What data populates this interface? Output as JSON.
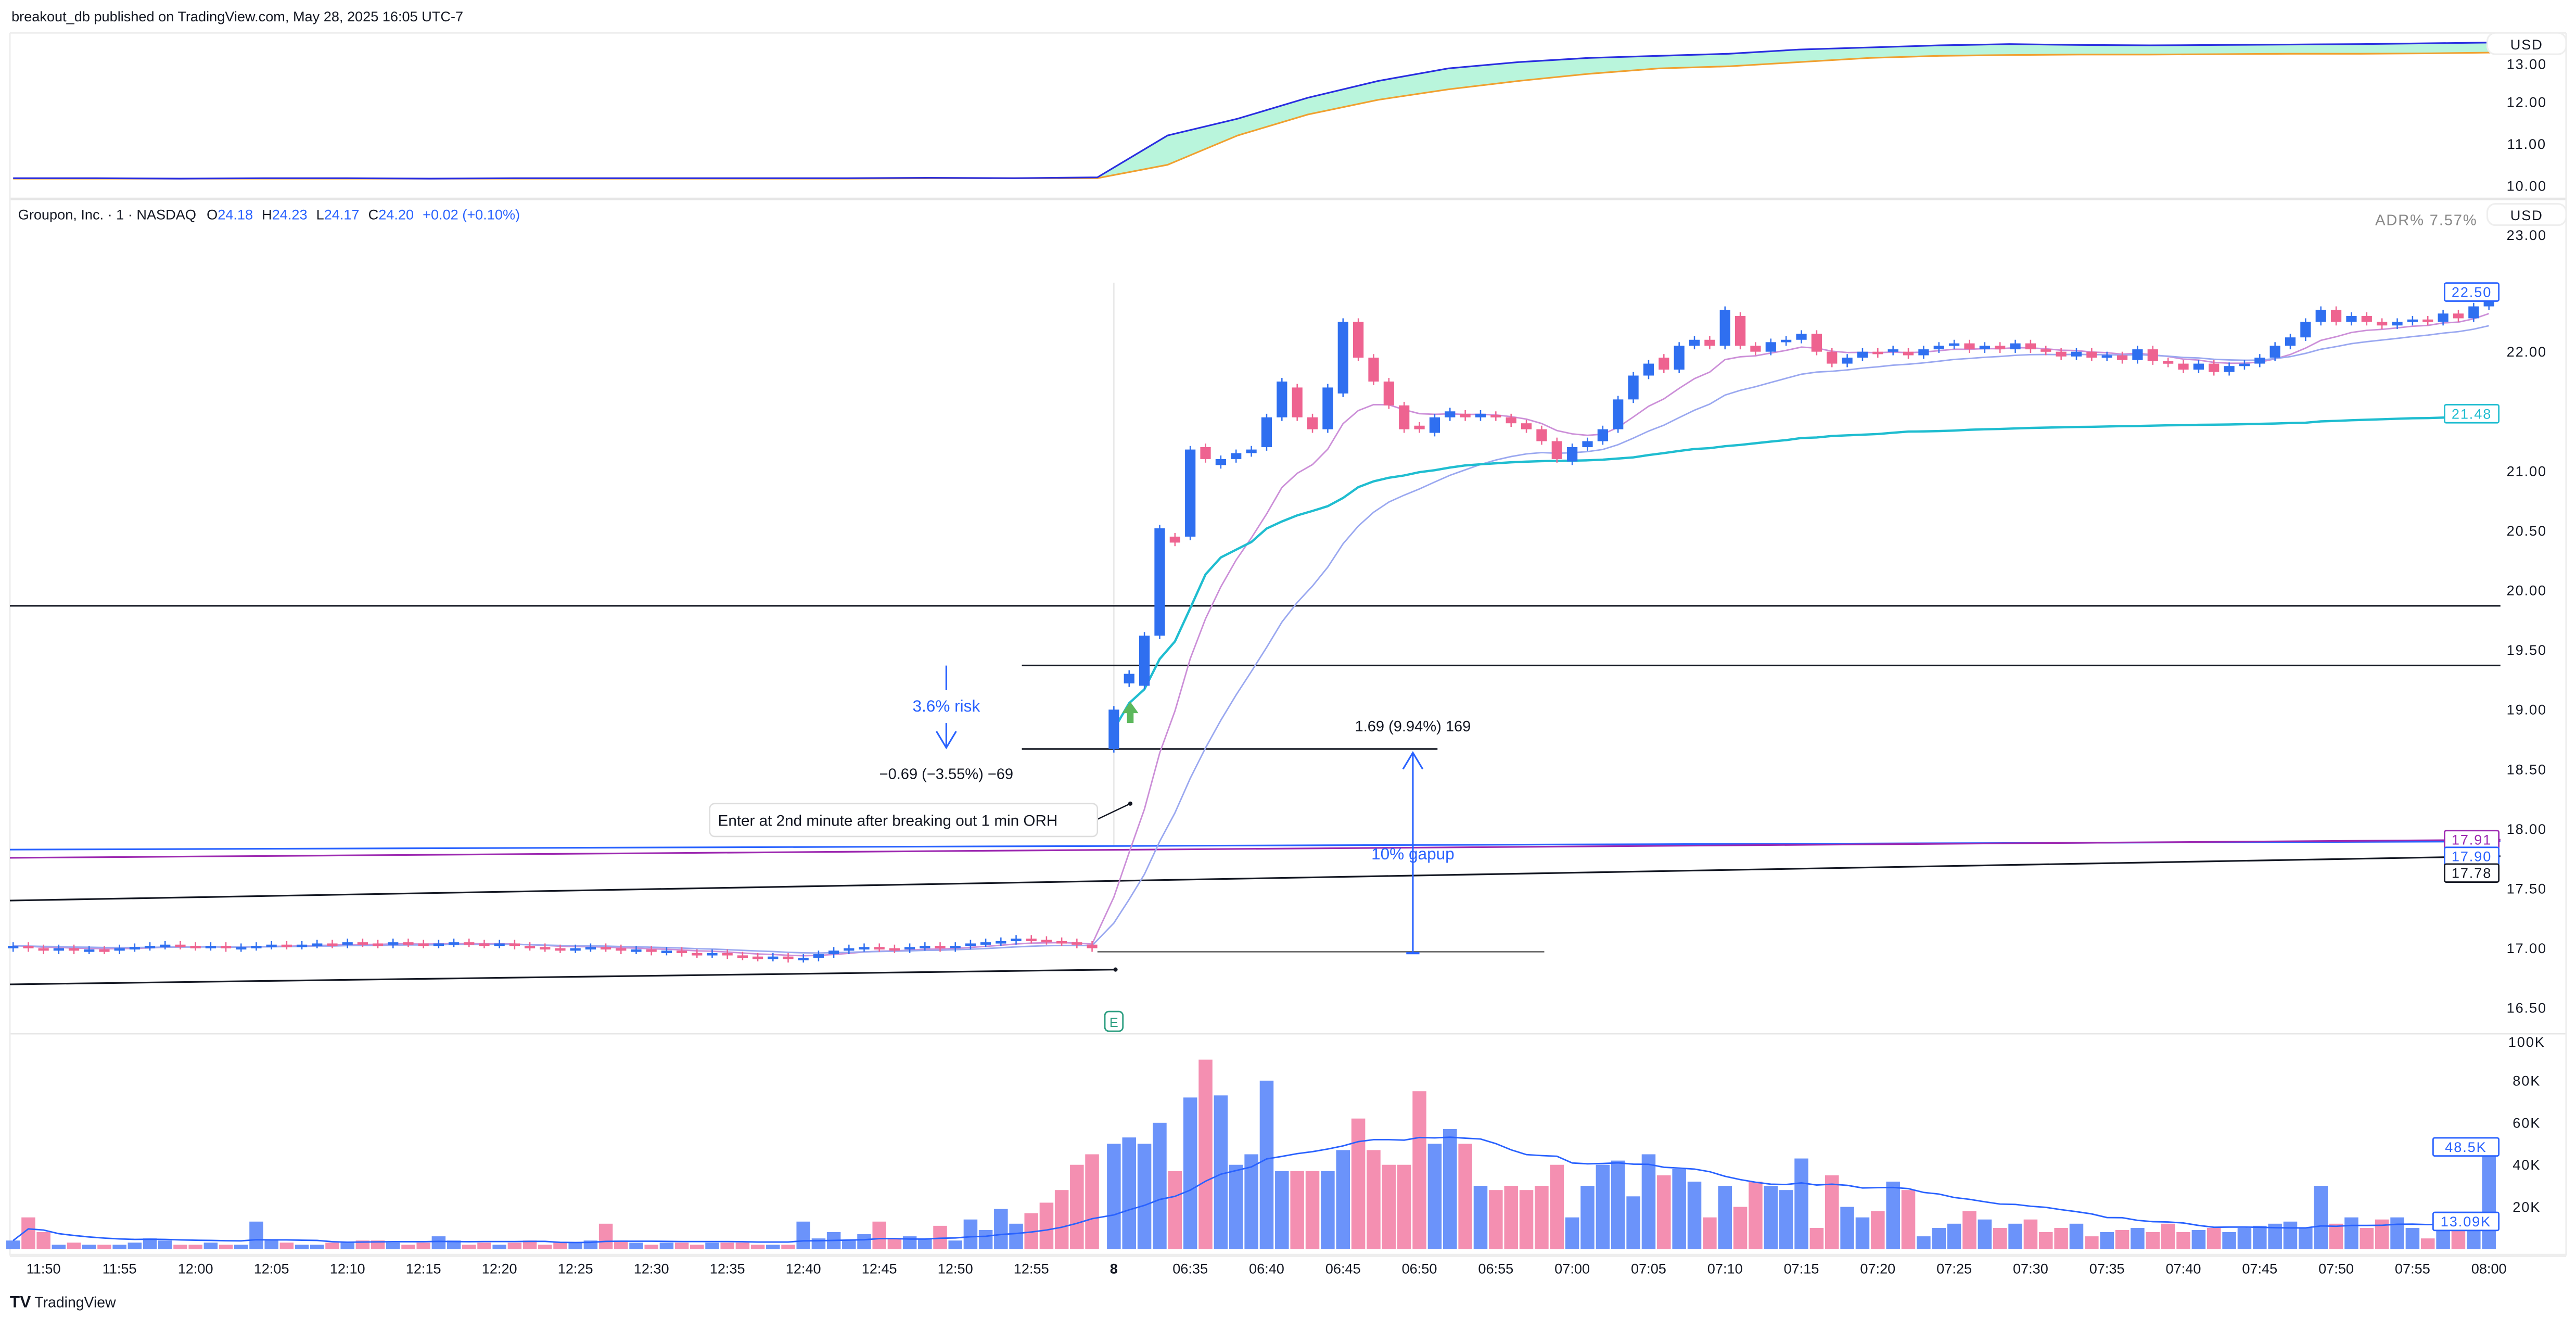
{
  "publish_line": "breakout_db published on TradingView.com, May 28, 2025 16:05 UTC-7",
  "footer_logo": "TradingView",
  "colors": {
    "up": "#2f6ff0",
    "down": "#ee6390",
    "vol_up": "#6b93fa",
    "vol_down": "#f48fb1",
    "vwap": "#1fbdd0",
    "ema_fast": "#cc8fd8",
    "ema_slow": "#9aa8f0",
    "fill": "#b9f5dc",
    "upper_line": "#2a2ee0",
    "lower_line": "#f0a030",
    "gain_arrow": "#5cb85c",
    "annotation_blue": "#2962ff"
  },
  "top_pane": {
    "currency": "USD",
    "ticks": [
      "13.00",
      "12.00",
      "11.00",
      "10.00"
    ],
    "upper_series": [
      10.18,
      10.18,
      10.17,
      10.18,
      10.18,
      10.17,
      10.18,
      10.18,
      10.18,
      10.18,
      10.18,
      10.19,
      10.18,
      10.2,
      11.2,
      11.6,
      12.1,
      12.5,
      12.8,
      12.95,
      13.05,
      13.1,
      13.15,
      13.25,
      13.3,
      13.35,
      13.38,
      13.36,
      13.35,
      13.36,
      13.37,
      13.38,
      13.4,
      13.42
    ],
    "lower_series": [
      10.17,
      10.17,
      10.17,
      10.17,
      10.17,
      10.17,
      10.17,
      10.17,
      10.17,
      10.17,
      10.17,
      10.18,
      10.18,
      10.18,
      10.5,
      11.2,
      11.7,
      12.05,
      12.3,
      12.5,
      12.67,
      12.8,
      12.85,
      12.95,
      13.05,
      13.1,
      13.12,
      13.13,
      13.13,
      13.14,
      13.15,
      13.15,
      13.16,
      13.18
    ]
  },
  "header": {
    "symbol": "Groupon, Inc. · 1 · NASDAQ",
    "o_label": "O",
    "o": "24.18",
    "h_label": "H",
    "h": "24.23",
    "l_label": "L",
    "l": "24.17",
    "c_label": "C",
    "c": "24.20",
    "change": "+0.02 (+0.10%)",
    "adr": "ADR%  7.57%",
    "currency": "USD"
  },
  "chart_data": {
    "type": "candlestick",
    "price_ticks": [
      "23.00",
      "22.00",
      "21.00",
      "20.50",
      "20.00",
      "19.50",
      "19.00",
      "18.50",
      "18.00",
      "17.50",
      "17.00",
      "16.50"
    ],
    "volume_ticks": [
      "100K",
      "80K",
      "60K",
      "40K",
      "20K"
    ],
    "time_labels": [
      "11:50",
      "11:55",
      "12:00",
      "12:05",
      "12:10",
      "12:15",
      "12:20",
      "12:25",
      "12:30",
      "12:35",
      "12:40",
      "12:45",
      "12:50",
      "12:55",
      "8",
      "06:35",
      "06:40",
      "06:45",
      "06:50",
      "06:55",
      "07:00",
      "07:05",
      "07:10",
      "07:15",
      "07:20",
      "07:25",
      "07:30",
      "07:35",
      "07:40",
      "07:45",
      "07:50",
      "07:55",
      "08:00"
    ],
    "session1_open": 17.0,
    "session1_closes": [
      17.02,
      17.0,
      16.98,
      17.0,
      16.98,
      16.99,
      16.98,
      17.0,
      17.01,
      17.02,
      17.03,
      17.02,
      17.01,
      17.02,
      17.0,
      17.01,
      17.02,
      17.03,
      17.02,
      17.03,
      17.04,
      17.03,
      17.05,
      17.04,
      17.03,
      17.05,
      17.04,
      17.03,
      17.04,
      17.05,
      17.04,
      17.03,
      17.04,
      17.02,
      17.01,
      17.0,
      16.99,
      17.0,
      17.01,
      17.0,
      16.98,
      16.99,
      16.97,
      16.98,
      16.96,
      16.95,
      16.96,
      16.94,
      16.93,
      16.92,
      16.93,
      16.91,
      16.92,
      16.95,
      16.98,
      17.0,
      17.01,
      17.0,
      16.99,
      17.01,
      17.02,
      17.0,
      17.02,
      17.04,
      17.05,
      17.06,
      17.08,
      17.07,
      17.06,
      17.05,
      17.03,
      17.0
    ],
    "session1_volume_k": [
      4,
      15,
      8,
      2,
      3,
      2,
      2,
      2,
      3,
      5,
      4,
      2,
      2,
      3,
      2,
      2,
      13,
      4,
      3,
      2,
      2,
      3,
      3,
      4,
      4,
      3,
      2,
      3,
      6,
      4,
      2,
      3,
      2,
      3,
      4,
      2,
      3,
      3,
      4,
      12,
      4,
      3,
      2,
      3,
      3,
      2,
      3,
      3,
      3,
      2,
      2,
      2,
      13,
      5,
      8,
      4,
      7,
      13,
      5,
      6,
      5,
      11,
      4,
      14,
      9,
      19,
      12,
      17,
      22,
      28,
      40,
      45
    ],
    "session2_candles": [
      [
        18.67,
        19.0
      ],
      [
        19.22,
        19.3
      ],
      [
        19.2,
        19.62
      ],
      [
        19.62,
        20.52
      ],
      [
        20.45,
        20.4
      ],
      [
        20.45,
        21.18
      ],
      [
        21.2,
        21.1
      ],
      [
        21.05,
        21.1
      ],
      [
        21.1,
        21.15
      ],
      [
        21.15,
        21.18
      ],
      [
        21.2,
        21.45
      ],
      [
        21.45,
        21.75
      ],
      [
        21.7,
        21.45
      ],
      [
        21.45,
        21.35
      ],
      [
        21.35,
        21.7
      ],
      [
        21.65,
        22.25
      ],
      [
        22.25,
        21.95
      ],
      [
        21.95,
        21.75
      ],
      [
        21.75,
        21.55
      ],
      [
        21.55,
        21.35
      ],
      [
        21.38,
        21.35
      ],
      [
        21.32,
        21.45
      ],
      [
        21.45,
        21.5
      ],
      [
        21.48,
        21.45
      ],
      [
        21.45,
        21.48
      ],
      [
        21.47,
        21.45
      ],
      [
        21.45,
        21.4
      ],
      [
        21.4,
        21.35
      ],
      [
        21.35,
        21.25
      ],
      [
        21.25,
        21.1
      ],
      [
        21.08,
        21.2
      ],
      [
        21.2,
        21.25
      ],
      [
        21.25,
        21.35
      ],
      [
        21.35,
        21.6
      ],
      [
        21.6,
        21.8
      ],
      [
        21.8,
        21.9
      ],
      [
        21.95,
        21.85
      ],
      [
        21.85,
        22.05
      ],
      [
        22.05,
        22.1
      ],
      [
        22.1,
        22.05
      ],
      [
        22.05,
        22.35
      ],
      [
        22.3,
        22.05
      ],
      [
        22.05,
        22.0
      ],
      [
        22.0,
        22.08
      ],
      [
        22.08,
        22.1
      ],
      [
        22.1,
        22.15
      ],
      [
        22.15,
        22.0
      ],
      [
        22.0,
        21.9
      ],
      [
        21.9,
        21.95
      ],
      [
        21.95,
        22.0
      ],
      [
        22.0,
        21.98
      ],
      [
        22.0,
        22.02
      ],
      [
        22.0,
        21.97
      ],
      [
        21.97,
        22.02
      ],
      [
        22.02,
        22.05
      ],
      [
        22.05,
        22.07
      ],
      [
        22.07,
        22.02
      ],
      [
        22.02,
        22.05
      ],
      [
        22.05,
        22.02
      ],
      [
        22.02,
        22.07
      ],
      [
        22.07,
        22.02
      ],
      [
        22.02,
        22.0
      ],
      [
        22.0,
        21.96
      ],
      [
        21.96,
        22.0
      ],
      [
        22.0,
        21.95
      ],
      [
        21.95,
        21.97
      ],
      [
        21.97,
        21.93
      ],
      [
        21.93,
        22.02
      ],
      [
        22.02,
        21.92
      ],
      [
        21.92,
        21.9
      ],
      [
        21.9,
        21.85
      ],
      [
        21.85,
        21.9
      ],
      [
        21.9,
        21.83
      ],
      [
        21.83,
        21.88
      ],
      [
        21.88,
        21.9
      ],
      [
        21.9,
        21.95
      ],
      [
        21.95,
        22.05
      ],
      [
        22.05,
        22.12
      ],
      [
        22.12,
        22.25
      ],
      [
        22.25,
        22.35
      ],
      [
        22.35,
        22.25
      ],
      [
        22.25,
        22.3
      ],
      [
        22.3,
        22.25
      ],
      [
        22.25,
        22.22
      ],
      [
        22.22,
        22.25
      ],
      [
        22.25,
        22.27
      ],
      [
        22.27,
        22.25
      ],
      [
        22.25,
        22.32
      ],
      [
        22.32,
        22.28
      ],
      [
        22.28,
        22.38
      ],
      [
        22.38,
        22.5
      ]
    ],
    "session2_volume_k": [
      50,
      53,
      50,
      60,
      37,
      72,
      90,
      73,
      40,
      45,
      80,
      37,
      37,
      37,
      37,
      47,
      62,
      47,
      40,
      40,
      75,
      50,
      57,
      50,
      30,
      28,
      30,
      28,
      30,
      40,
      15,
      30,
      40,
      42,
      25,
      45,
      35,
      38,
      32,
      15,
      30,
      20,
      32,
      30,
      28,
      43,
      10,
      35,
      20,
      15,
      18,
      32,
      28,
      6,
      10,
      12,
      18,
      14,
      10,
      12,
      14,
      8,
      10,
      12,
      6,
      8,
      9,
      10,
      8,
      12,
      8,
      9,
      10,
      8,
      10,
      11,
      12,
      13,
      10,
      30,
      12,
      15,
      10,
      14,
      15,
      10,
      5,
      12,
      15,
      10,
      48.5
    ],
    "price_badges": [
      {
        "value": "22.50",
        "price": 22.5,
        "color": "#2962ff"
      },
      {
        "value": "21.48",
        "price": 21.48,
        "color": "#1fbdd0"
      },
      {
        "value": "17.91",
        "price": 17.91,
        "color": "#9c27b0"
      },
      {
        "value": "17.90",
        "price": 17.77,
        "color": "#2962ff"
      },
      {
        "value": "17.78",
        "price": 17.63,
        "color": "#131722"
      }
    ],
    "volume_badges": [
      {
        "value": "48.5K",
        "volume_k": 48.5,
        "color": "#2962ff"
      },
      {
        "value": "13.09K",
        "volume_k": 13.09,
        "color": "#2962ff"
      }
    ],
    "levels": {
      "prior_high": 19.87,
      "target": 19.37,
      "stop": 18.67,
      "prior_close": 16.97
    }
  },
  "annotations": {
    "risk_label": "3.6% risk",
    "stop_measure": "−0.69 (−3.55%) −69",
    "gain_measure": "1.69 (9.94%) 169",
    "gap_label": "10% gapup",
    "entry_note": "Enter at 2nd minute after breaking out 1 min ORH",
    "earnings_badge": "E"
  }
}
